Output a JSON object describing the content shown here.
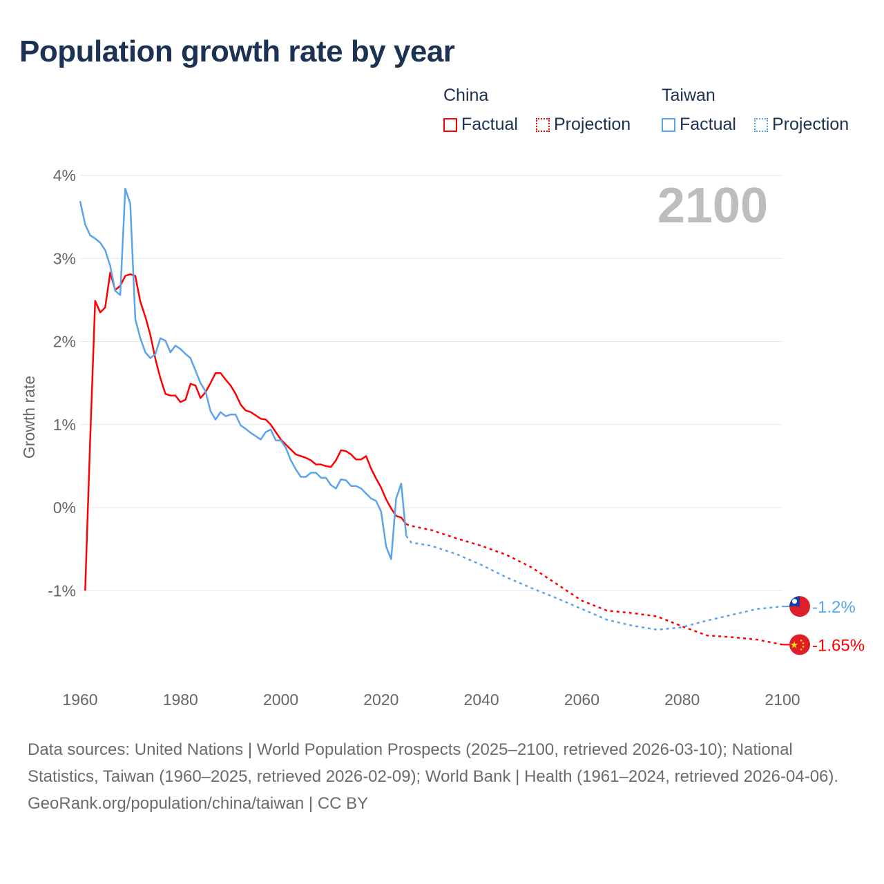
{
  "title": "Population growth rate by year",
  "legend": {
    "groups": [
      {
        "name": "China",
        "color": "#ff0000",
        "factual": "Factual",
        "projection": "Projection"
      },
      {
        "name": "Taiwan",
        "color": "#5ba3ea",
        "factual": "Factual",
        "projection": "Projection"
      }
    ]
  },
  "footer": {
    "sources": "Data sources: United Nations | World Population Prospects (2025–2100, retrieved 2026-03-10); National Statistics, Taiwan (1960–2025, retrieved 2026-02-09); World Bank | Health (1961–2024, retrieved 2026-04-06).",
    "credit": "GeoRank.org/population/china/taiwan | CC BY"
  },
  "chart_data": {
    "type": "line",
    "title": "Population growth rate by year",
    "ylabel": "Growth rate",
    "xlabel": "",
    "year_label": "2100",
    "xlim": [
      1960,
      2100
    ],
    "ylim": [
      -2,
      4
    ],
    "x_ticks": [
      "1960",
      "1980",
      "2000",
      "2020",
      "2040",
      "2060",
      "2080",
      "2100"
    ],
    "y_ticks": [
      {
        "v": 4,
        "label": "4%"
      },
      {
        "v": 3,
        "label": "3%"
      },
      {
        "v": 2,
        "label": "2%"
      },
      {
        "v": 1,
        "label": "1%"
      },
      {
        "v": 0,
        "label": "0%"
      },
      {
        "v": -1,
        "label": "-1%"
      }
    ],
    "grid": true,
    "series": [
      {
        "name": "China",
        "color": "#ff0000",
        "end_label": "-1.65%",
        "factual_start": 1961,
        "factual": [
          -1.0,
          0.8,
          2.49,
          2.35,
          2.41,
          2.83,
          2.62,
          2.67,
          2.79,
          2.81,
          2.79,
          2.48,
          2.3,
          2.08,
          1.79,
          1.56,
          1.37,
          1.35,
          1.35,
          1.27,
          1.3,
          1.49,
          1.47,
          1.32,
          1.39,
          1.5,
          1.62,
          1.62,
          1.54,
          1.47,
          1.37,
          1.24,
          1.17,
          1.15,
          1.11,
          1.07,
          1.06,
          1.0,
          0.91,
          0.82,
          0.76,
          0.7,
          0.64,
          0.62,
          0.6,
          0.57,
          0.52,
          0.52,
          0.5,
          0.49,
          0.57,
          0.69,
          0.68,
          0.64,
          0.58,
          0.58,
          0.62,
          0.47,
          0.35,
          0.24,
          0.1,
          -0.01,
          -0.1,
          -0.12,
          -0.2
        ],
        "projection": [
          [
            2025,
            -0.2
          ],
          [
            2026,
            -0.22
          ],
          [
            2030,
            -0.27
          ],
          [
            2035,
            -0.37
          ],
          [
            2040,
            -0.46
          ],
          [
            2045,
            -0.57
          ],
          [
            2050,
            -0.72
          ],
          [
            2055,
            -0.92
          ],
          [
            2060,
            -1.12
          ],
          [
            2065,
            -1.24
          ],
          [
            2070,
            -1.27
          ],
          [
            2075,
            -1.31
          ],
          [
            2080,
            -1.43
          ],
          [
            2085,
            -1.54
          ],
          [
            2090,
            -1.56
          ],
          [
            2095,
            -1.59
          ],
          [
            2100,
            -1.65
          ]
        ]
      },
      {
        "name": "Taiwan",
        "color": "#5ba3ea",
        "end_label": "-1.2%",
        "factual_start": 1960,
        "factual": [
          3.69,
          3.41,
          3.28,
          3.24,
          3.19,
          3.1,
          2.91,
          2.61,
          2.56,
          3.84,
          3.66,
          2.27,
          2.04,
          1.87,
          1.8,
          1.85,
          2.04,
          2.01,
          1.87,
          1.95,
          1.91,
          1.85,
          1.8,
          1.65,
          1.5,
          1.4,
          1.16,
          1.06,
          1.15,
          1.1,
          1.12,
          1.12,
          0.99,
          0.95,
          0.9,
          0.86,
          0.82,
          0.91,
          0.94,
          0.81,
          0.81,
          0.72,
          0.57,
          0.46,
          0.37,
          0.37,
          0.42,
          0.42,
          0.36,
          0.36,
          0.27,
          0.23,
          0.34,
          0.33,
          0.26,
          0.26,
          0.23,
          0.17,
          0.11,
          0.08,
          -0.05,
          -0.47,
          -0.62,
          0.11,
          0.29,
          -0.34
        ],
        "projection": [
          [
            2025,
            -0.34
          ],
          [
            2026,
            -0.42
          ],
          [
            2030,
            -0.46
          ],
          [
            2035,
            -0.56
          ],
          [
            2040,
            -0.69
          ],
          [
            2045,
            -0.84
          ],
          [
            2050,
            -0.97
          ],
          [
            2055,
            -1.09
          ],
          [
            2060,
            -1.22
          ],
          [
            2065,
            -1.35
          ],
          [
            2070,
            -1.42
          ],
          [
            2075,
            -1.47
          ],
          [
            2080,
            -1.44
          ],
          [
            2085,
            -1.36
          ],
          [
            2090,
            -1.29
          ],
          [
            2095,
            -1.22
          ],
          [
            2100,
            -1.19
          ]
        ]
      }
    ]
  }
}
